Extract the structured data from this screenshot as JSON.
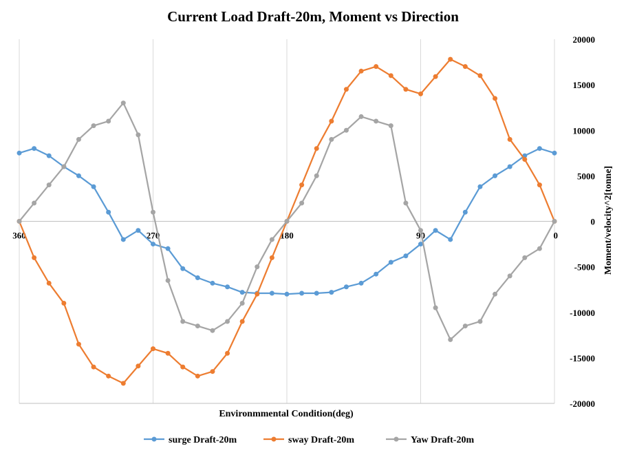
{
  "chart_data": {
    "type": "line",
    "title": "Current Load Draft-20m, Moment vs Direction",
    "xlabel": "Environmmental Condition(deg)",
    "ylabel": "Moment/velocity^2[tonne]",
    "xlim": [
      360,
      0
    ],
    "ylim": [
      -20000,
      20000
    ],
    "x_ticks": [
      "360",
      "270",
      "180",
      "90",
      "0"
    ],
    "y_ticks": [
      "20000",
      "15000",
      "10000",
      "5000",
      "0",
      "-5000",
      "-10000",
      "-15000",
      "-20000"
    ],
    "grid": "vertical",
    "legend": "bottom",
    "x": [
      360,
      350,
      340,
      330,
      320,
      310,
      300,
      290,
      280,
      270,
      260,
      250,
      240,
      230,
      220,
      210,
      200,
      190,
      180,
      170,
      160,
      150,
      140,
      130,
      120,
      110,
      100,
      90,
      80,
      70,
      60,
      50,
      40,
      30,
      20,
      10,
      0
    ],
    "series": [
      {
        "name": "surge Draft-20m",
        "color": "#5B9BD5",
        "values": [
          7500,
          8000,
          7200,
          6000,
          5000,
          3800,
          1000,
          -2000,
          -1000,
          -2500,
          -3000,
          -5200,
          -6200,
          -6800,
          -7200,
          -7800,
          -7900,
          -7900,
          -8000,
          -7900,
          -7900,
          -7800,
          -7200,
          -6800,
          -5800,
          -4500,
          -3800,
          -2500,
          -1000,
          -2000,
          1000,
          3800,
          5000,
          6000,
          7200,
          8000,
          7500
        ]
      },
      {
        "name": "sway Draft-20m",
        "color": "#ED7D31",
        "values": [
          0,
          -4000,
          -6800,
          -9000,
          -13500,
          -16000,
          -17000,
          -17800,
          -15900,
          -14000,
          -14500,
          -16000,
          -17000,
          -16500,
          -14500,
          -11000,
          -8000,
          -4000,
          0,
          4000,
          8000,
          11000,
          14500,
          16500,
          17000,
          16000,
          14500,
          14000,
          15900,
          17800,
          17000,
          16000,
          13500,
          9000,
          6800,
          4000,
          0
        ]
      },
      {
        "name": "Yaw Draft-20m",
        "color": "#A5A5A5",
        "values": [
          0,
          2000,
          4000,
          6000,
          9000,
          10500,
          11000,
          13000,
          9500,
          1000,
          -6500,
          -11000,
          -11500,
          -12000,
          -11000,
          -9000,
          -5000,
          -2000,
          0,
          2000,
          5000,
          9000,
          10000,
          11500,
          11000,
          10500,
          2000,
          -1000,
          -9500,
          -13000,
          -11500,
          -11000,
          -8000,
          -6000,
          -4000,
          -3000,
          0
        ]
      }
    ]
  }
}
